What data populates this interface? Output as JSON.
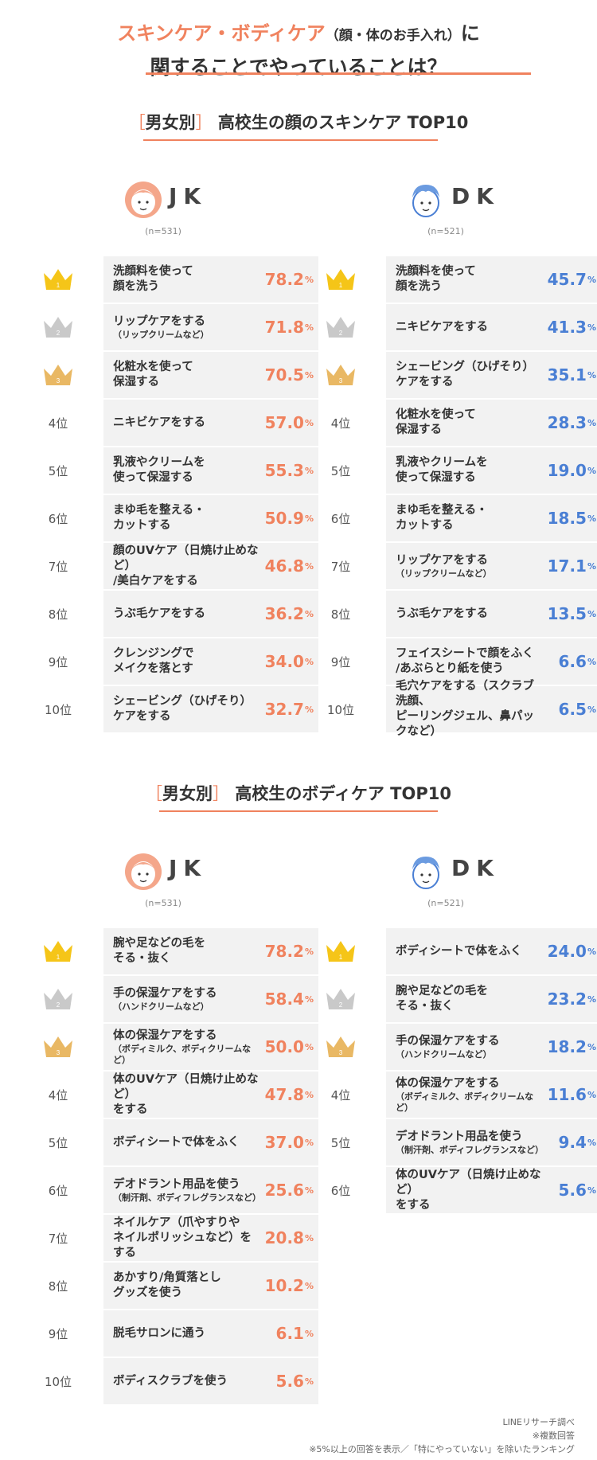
{
  "header": {
    "title_accent": "スキンケア・ボディケア",
    "title_paren": "（顔・体のお手入れ）",
    "title_ni": "に",
    "title_line2": "関することでやっていることは？"
  },
  "sections": [
    {
      "bracket_open": "［",
      "bracket_label": "男女別",
      "bracket_close": "］",
      "title": "高校生の顔のスキンケア TOP10",
      "groups": [
        {
          "name": "JK",
          "n": "(n=531)"
        },
        {
          "name": "DK",
          "n": "(n=521)"
        }
      ]
    },
    {
      "bracket_open": "［",
      "bracket_label": "男女別",
      "bracket_close": "］",
      "title": "高校生のボディケア TOP10",
      "groups": [
        {
          "name": "JK",
          "n": "(n=531)"
        },
        {
          "name": "DK",
          "n": "(n=521)"
        }
      ]
    }
  ],
  "rank_suffix": "位",
  "unit": "%",
  "colors": {
    "accent": "#f0825e",
    "dk": "#4a7fd4",
    "gold": "#f5c518",
    "silver": "#c9c9c9",
    "bronze": "#e9b864"
  },
  "chart_data": [
    {
      "type": "bar",
      "title": "高校生の顔のスキンケア TOP10",
      "series": [
        {
          "name": "JK",
          "items": [
            {
              "rank": 1,
              "label": [
                "洗顔料を使って",
                "顔を洗う"
              ],
              "value": 78.2
            },
            {
              "rank": 2,
              "label": [
                "リップケアをする"
              ],
              "sub": "（リップクリームなど）",
              "value": 71.8
            },
            {
              "rank": 3,
              "label": [
                "化粧水を使って",
                "保湿する"
              ],
              "value": 70.5
            },
            {
              "rank": 4,
              "label": [
                "ニキビケアをする"
              ],
              "value": 57.0
            },
            {
              "rank": 5,
              "label": [
                "乳液やクリームを",
                "使って保湿する"
              ],
              "value": 55.3
            },
            {
              "rank": 6,
              "label": [
                "まゆ毛を整える・",
                "カットする"
              ],
              "value": 50.9
            },
            {
              "rank": 7,
              "label": [
                "顔のUVケア（日焼け止めなど）",
                "/美白ケアをする"
              ],
              "value": 46.8
            },
            {
              "rank": 8,
              "label": [
                "うぶ毛ケアをする"
              ],
              "value": 36.2
            },
            {
              "rank": 9,
              "label": [
                "クレンジングで",
                "メイクを落とす"
              ],
              "value": 34.0
            },
            {
              "rank": 10,
              "label": [
                "シェービング（ひげそり）",
                "ケアをする"
              ],
              "value": 32.7
            }
          ]
        },
        {
          "name": "DK",
          "items": [
            {
              "rank": 1,
              "label": [
                "洗顔料を使って",
                "顔を洗う"
              ],
              "value": 45.7
            },
            {
              "rank": 2,
              "label": [
                "ニキビケアをする"
              ],
              "value": 41.3
            },
            {
              "rank": 3,
              "label": [
                "シェービング（ひげそり）",
                "ケアをする"
              ],
              "value": 35.1
            },
            {
              "rank": 4,
              "label": [
                "化粧水を使って",
                "保湿する"
              ],
              "value": 28.3
            },
            {
              "rank": 5,
              "label": [
                "乳液やクリームを",
                "使って保湿する"
              ],
              "value": 19.0
            },
            {
              "rank": 6,
              "label": [
                "まゆ毛を整える・",
                "カットする"
              ],
              "value": 18.5
            },
            {
              "rank": 7,
              "label": [
                "リップケアをする"
              ],
              "sub": "（リップクリームなど）",
              "value": 17.1
            },
            {
              "rank": 8,
              "label": [
                "うぶ毛ケアをする"
              ],
              "value": 13.5
            },
            {
              "rank": 9,
              "label": [
                "フェイスシートで顔をふく",
                "/あぶらとり紙を使う"
              ],
              "value": 6.6
            },
            {
              "rank": 10,
              "label": [
                "毛穴ケアをする（スクラブ洗顔、",
                "ピーリングジェル、鼻パックなど）"
              ],
              "value": 6.5
            }
          ]
        }
      ]
    },
    {
      "type": "bar",
      "title": "高校生のボディケア TOP10",
      "series": [
        {
          "name": "JK",
          "items": [
            {
              "rank": 1,
              "label": [
                "腕や足などの毛を",
                "そる・抜く"
              ],
              "value": 78.2
            },
            {
              "rank": 2,
              "label": [
                "手の保湿ケアをする"
              ],
              "sub": "（ハンドクリームなど）",
              "value": 58.4
            },
            {
              "rank": 3,
              "label": [
                "体の保湿ケアをする"
              ],
              "sub": "（ボディミルク、ボディクリームなど）",
              "value": 50.0
            },
            {
              "rank": 4,
              "label": [
                "体のUVケア（日焼け止めなど）",
                "をする"
              ],
              "value": 47.8
            },
            {
              "rank": 5,
              "label": [
                "ボディシートで体をふく"
              ],
              "value": 37.0
            },
            {
              "rank": 6,
              "label": [
                "デオドラント用品を使う"
              ],
              "sub": "（制汗剤、ボディフレグランスなど）",
              "value": 25.6
            },
            {
              "rank": 7,
              "label": [
                "ネイルケア（爪やすりや",
                "ネイルポリッシュなど）をする"
              ],
              "value": 20.8
            },
            {
              "rank": 8,
              "label": [
                "あかすり/角質落とし",
                "グッズを使う"
              ],
              "value": 10.2
            },
            {
              "rank": 9,
              "label": [
                "脱毛サロンに通う"
              ],
              "value": 6.1
            },
            {
              "rank": 10,
              "label": [
                "ボディスクラブを使う"
              ],
              "value": 5.6
            }
          ]
        },
        {
          "name": "DK",
          "items": [
            {
              "rank": 1,
              "label": [
                "ボディシートで体をふく"
              ],
              "value": 24.0
            },
            {
              "rank": 2,
              "label": [
                "腕や足などの毛を",
                "そる・抜く"
              ],
              "value": 23.2
            },
            {
              "rank": 3,
              "label": [
                "手の保湿ケアをする"
              ],
              "sub": "（ハンドクリームなど）",
              "value": 18.2
            },
            {
              "rank": 4,
              "label": [
                "体の保湿ケアをする"
              ],
              "sub": "（ボディミルク、ボディクリームなど）",
              "value": 11.6
            },
            {
              "rank": 5,
              "label": [
                "デオドラント用品を使う"
              ],
              "sub": "（制汗剤、ボディフレグランスなど）",
              "value": 9.4
            },
            {
              "rank": 6,
              "label": [
                "体のUVケア（日焼け止めなど）",
                "をする"
              ],
              "value": 5.6
            }
          ]
        }
      ]
    }
  ],
  "footnotes": [
    "LINEリサーチ調べ",
    "※複数回答",
    "※5%以上の回答を表示／「特にやっていない」を除いたランキング"
  ]
}
